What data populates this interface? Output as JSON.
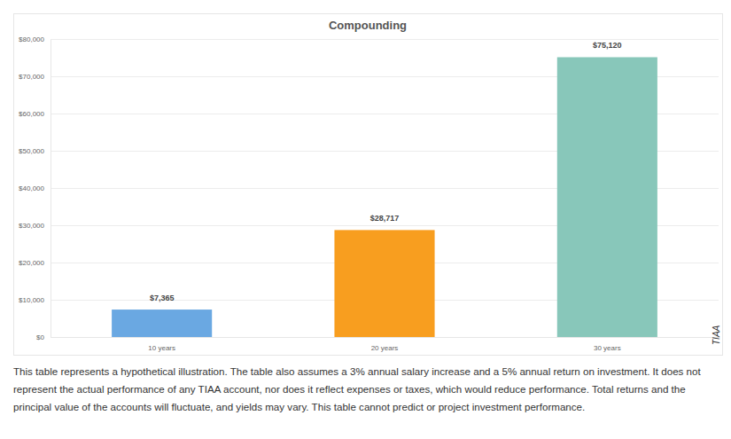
{
  "chart_data": {
    "type": "bar",
    "title": "Compounding",
    "categories": [
      "10 years",
      "20 years",
      "30 years"
    ],
    "values": [
      7365,
      28717,
      75120
    ],
    "value_labels": [
      "$7,365",
      "$28,717",
      "$75,120"
    ],
    "colors": [
      "#6aa8e2",
      "#f89e1f",
      "#88c7ba"
    ],
    "data_labels": true,
    "ylim": [
      0,
      80000
    ],
    "yticks": [
      {
        "value": 0,
        "label": "$0"
      },
      {
        "value": 10000,
        "label": "$10,000"
      },
      {
        "value": 20000,
        "label": "$20,000"
      },
      {
        "value": 30000,
        "label": "$30,000"
      },
      {
        "value": 40000,
        "label": "$40,000"
      },
      {
        "value": 50000,
        "label": "$50,000"
      },
      {
        "value": 60000,
        "label": "$60,000"
      },
      {
        "value": 70000,
        "label": "$70,000"
      },
      {
        "value": 80000,
        "label": "$80,000"
      }
    ],
    "grid": true,
    "annotations": [
      "TIAA",
      "This table represents a hypothetical illustration. The table also assumes a 3% annual salary increase and a 5% annual return on investment. It does not represent the actual performance of any TIAA account, nor does it reflect expenses or taxes, which would reduce performance. Total returns and the principal value of the accounts will fluctuate, and yields may vary. This table cannot predict or project investment performance."
    ]
  }
}
